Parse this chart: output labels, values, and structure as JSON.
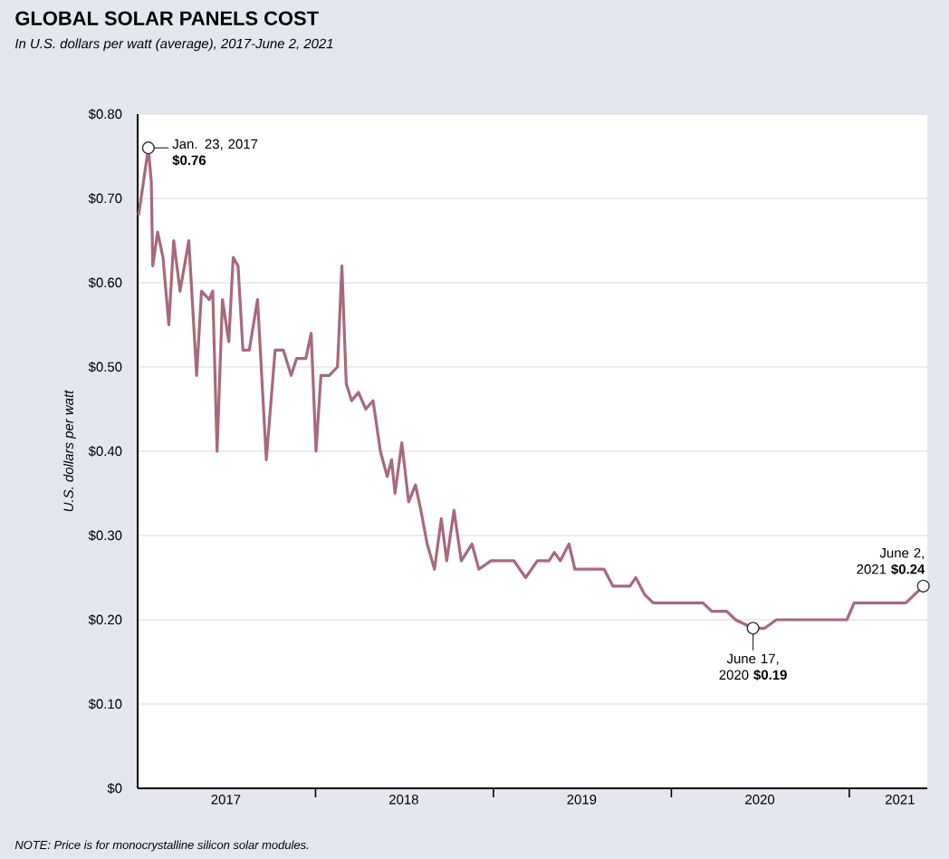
{
  "chart_data": {
    "type": "line",
    "title": "GLOBAL SOLAR PANELS COST",
    "subtitle": "In U.S. dollars per watt (average), 2017-June 2, 2021",
    "ylabel": "U.S. dollars per watt",
    "xlim": [
      "2017-01-01",
      "2021-06-10"
    ],
    "xticks": [
      {
        "value": "2017-07-01",
        "label": "2017"
      },
      {
        "value": "2018-01-01",
        "label": null
      },
      {
        "value": "2018-07-01",
        "label": "2018"
      },
      {
        "value": "2019-01-01",
        "label": null
      },
      {
        "value": "2019-07-01",
        "label": "2019"
      },
      {
        "value": "2020-01-01",
        "label": null
      },
      {
        "value": "2020-07-01",
        "label": "2020"
      },
      {
        "value": "2021-01-01",
        "label": null
      },
      {
        "value": "2021-04-15",
        "label": "2021"
      }
    ],
    "ylim": [
      0,
      0.8
    ],
    "yticks": [
      {
        "value": 0,
        "label": "$0"
      },
      {
        "value": 0.1,
        "label": "$0.10"
      },
      {
        "value": 0.2,
        "label": "$0.20"
      },
      {
        "value": 0.3,
        "label": "$0.30"
      },
      {
        "value": 0.4,
        "label": "$0.40"
      },
      {
        "value": 0.5,
        "label": "$0.50"
      },
      {
        "value": 0.6,
        "label": "$0.60"
      },
      {
        "value": 0.7,
        "label": "$0.70"
      },
      {
        "value": 0.8,
        "label": "$0.80"
      }
    ],
    "grid": "y",
    "series": [
      {
        "color": "#a86a78",
        "x": [
          "2017-01-03",
          "2017-01-23",
          "2017-01-29",
          "2017-02-01",
          "2017-02-11",
          "2017-02-22",
          "2017-03-06",
          "2017-03-16",
          "2017-03-29",
          "2017-04-16",
          "2017-05-02",
          "2017-05-12",
          "2017-05-28",
          "2017-06-04",
          "2017-06-13",
          "2017-06-24",
          "2017-07-07",
          "2017-07-16",
          "2017-07-26",
          "2017-08-05",
          "2017-08-18",
          "2017-09-04",
          "2017-09-22",
          "2017-10-10",
          "2017-10-27",
          "2017-11-12",
          "2017-11-23",
          "2017-12-12",
          "2017-12-23",
          "2018-01-02",
          "2018-01-12",
          "2018-01-29",
          "2018-02-15",
          "2018-02-24",
          "2018-03-05",
          "2018-03-16",
          "2018-03-30",
          "2018-04-14",
          "2018-04-29",
          "2018-05-14",
          "2018-05-28",
          "2018-06-06",
          "2018-06-13",
          "2018-06-27",
          "2018-07-11",
          "2018-07-25",
          "2018-08-05",
          "2018-08-18",
          "2018-09-02",
          "2018-09-16",
          "2018-09-27",
          "2018-10-12",
          "2018-10-27",
          "2018-11-18",
          "2018-12-02",
          "2018-12-27",
          "2019-02-12",
          "2019-03-08",
          "2019-04-01",
          "2019-04-25",
          "2019-05-06",
          "2019-05-18",
          "2019-06-05",
          "2019-06-17",
          "2019-08-16",
          "2019-09-03",
          "2019-10-08",
          "2019-10-20",
          "2019-11-07",
          "2019-11-25",
          "2020-03-06",
          "2020-03-24",
          "2020-04-24",
          "2020-05-12",
          "2020-06-17",
          "2020-07-11",
          "2020-08-04",
          "2020-12-27",
          "2021-01-11",
          "2021-04-27",
          "2021-05-15",
          "2021-06-02"
        ],
        "values": [
          0.68,
          0.76,
          0.72,
          0.62,
          0.66,
          0.63,
          0.55,
          0.65,
          0.59,
          0.65,
          0.49,
          0.59,
          0.58,
          0.59,
          0.4,
          0.58,
          0.53,
          0.63,
          0.62,
          0.52,
          0.52,
          0.58,
          0.39,
          0.52,
          0.52,
          0.49,
          0.51,
          0.51,
          0.54,
          0.4,
          0.49,
          0.49,
          0.5,
          0.62,
          0.48,
          0.46,
          0.47,
          0.45,
          0.46,
          0.4,
          0.37,
          0.39,
          0.35,
          0.41,
          0.34,
          0.36,
          0.33,
          0.29,
          0.26,
          0.32,
          0.27,
          0.33,
          0.27,
          0.29,
          0.26,
          0.27,
          0.27,
          0.25,
          0.27,
          0.27,
          0.28,
          0.27,
          0.29,
          0.26,
          0.26,
          0.24,
          0.24,
          0.25,
          0.23,
          0.22,
          0.22,
          0.21,
          0.21,
          0.2,
          0.19,
          0.19,
          0.2,
          0.2,
          0.22,
          0.22,
          0.23,
          0.24
        ]
      }
    ],
    "annotations": [
      {
        "text": "Jan. 23, 2017 **$0.76**",
        "x": "2017-01-23",
        "y": 0.76
      },
      {
        "text": "June 17, 2020 **$0.19**",
        "x": "2020-06-17",
        "y": 0.19
      },
      {
        "text": "June 2, 2021 **$0.24**",
        "x": "2021-06-02",
        "y": 0.24
      },
      "NOTE: Price is for monocrystalline silicon solar modules."
    ]
  }
}
